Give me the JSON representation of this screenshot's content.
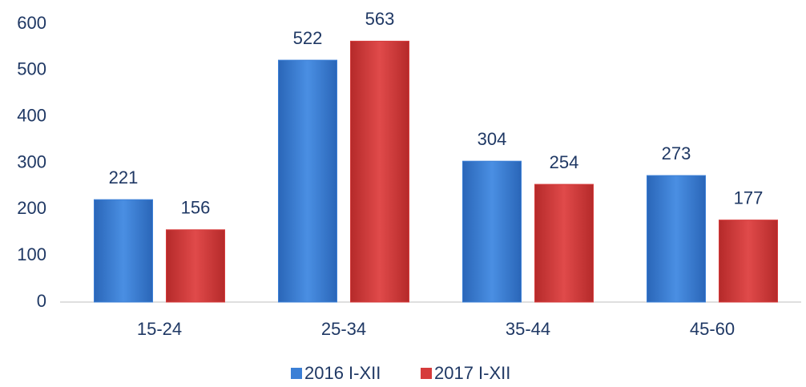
{
  "chart_data": {
    "type": "bar",
    "categories": [
      "15-24",
      "25-34",
      "35-44",
      "45-60"
    ],
    "series": [
      {
        "name": "2016 I-XII",
        "color": "#3b7fd6",
        "values": [
          221,
          522,
          304,
          273
        ]
      },
      {
        "name": "2017 I-XII",
        "color": "#d63b3b",
        "values": [
          156,
          563,
          254,
          177
        ]
      }
    ],
    "ylim": [
      0,
      600
    ],
    "yticks": [
      0,
      100,
      200,
      300,
      400,
      500,
      600
    ],
    "grid": false,
    "legend": "bottom"
  }
}
